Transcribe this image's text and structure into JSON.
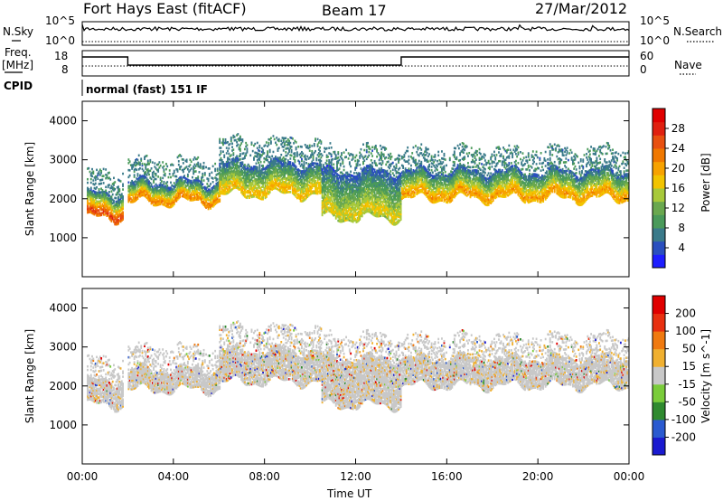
{
  "header": {
    "station": "Fort Hays East (fitACF)",
    "beam": "Beam 17",
    "date": "27/Mar/2012"
  },
  "noise_panel": {
    "left_label": "N.Sky",
    "right_label": "N.Search",
    "left_ticks": [
      "10^5",
      "10^0"
    ],
    "right_ticks": [
      "10^5",
      "10^0"
    ]
  },
  "freq_panel": {
    "left_label": "Freq.",
    "left_unit": "[MHz]",
    "right_label": "Nave",
    "left_ticks": [
      "18",
      "8"
    ],
    "right_ticks": [
      "60",
      "0"
    ]
  },
  "cpid": {
    "label": "CPID",
    "value": "normal (fast) 151 IF"
  },
  "chart_data": [
    {
      "type": "heatmap",
      "name": "power",
      "ylabel": "Slant Range [km]",
      "yticks": [
        "1000",
        "2000",
        "3000",
        "4000"
      ],
      "ylim": [
        0,
        4500
      ],
      "colorbar": {
        "label": "Power [dB]",
        "ticks": [
          "4",
          "8",
          "12",
          "16",
          "20",
          "24",
          "28"
        ],
        "colors": [
          "#1e1eff",
          "#2a4fbf",
          "#3a7a8a",
          "#4a9a5a",
          "#6aa84f",
          "#a8c93a",
          "#f2c400",
          "#f7a200",
          "#f07800",
          "#e85010",
          "#e02010",
          "#e00000"
        ]
      },
      "approx_echo_bands": [
        {
          "t": [
            0.2,
            1.8
          ],
          "range_km": [
            1500,
            2100
          ],
          "power_db": 26
        },
        {
          "t": [
            2.0,
            6.0
          ],
          "range_km": [
            1900,
            2400
          ],
          "power_db": 22
        },
        {
          "t": [
            6.0,
            10.5
          ],
          "range_km": [
            2100,
            2900
          ],
          "power_db": 18
        },
        {
          "t": [
            10.5,
            14.0
          ],
          "range_km": [
            1500,
            2700
          ],
          "power_db": 16
        },
        {
          "t": [
            14.0,
            24.0
          ],
          "range_km": [
            2000,
            2700
          ],
          "power_db": 20
        }
      ]
    },
    {
      "type": "heatmap",
      "name": "velocity",
      "ylabel": "Slant Range [km]",
      "yticks": [
        "1000",
        "2000",
        "3000",
        "4000"
      ],
      "ylim": [
        0,
        4500
      ],
      "colorbar": {
        "label": "Velocity [m s^-1]",
        "ticks": [
          "200",
          "100",
          "50",
          "15",
          "-15",
          "-50",
          "-100",
          "-200"
        ],
        "colors": [
          "#1a1ad0",
          "#2a5ad0",
          "#2f8a2f",
          "#7acc3a",
          "#c8c8c8",
          "#f0b030",
          "#f07a10",
          "#e83010",
          "#e00000"
        ]
      }
    }
  ],
  "x_axis": {
    "label": "Time UT",
    "ticks": [
      "00:00",
      "04:00",
      "08:00",
      "12:00",
      "16:00",
      "20:00",
      "00:00"
    ],
    "range_hours": [
      0,
      24
    ]
  }
}
